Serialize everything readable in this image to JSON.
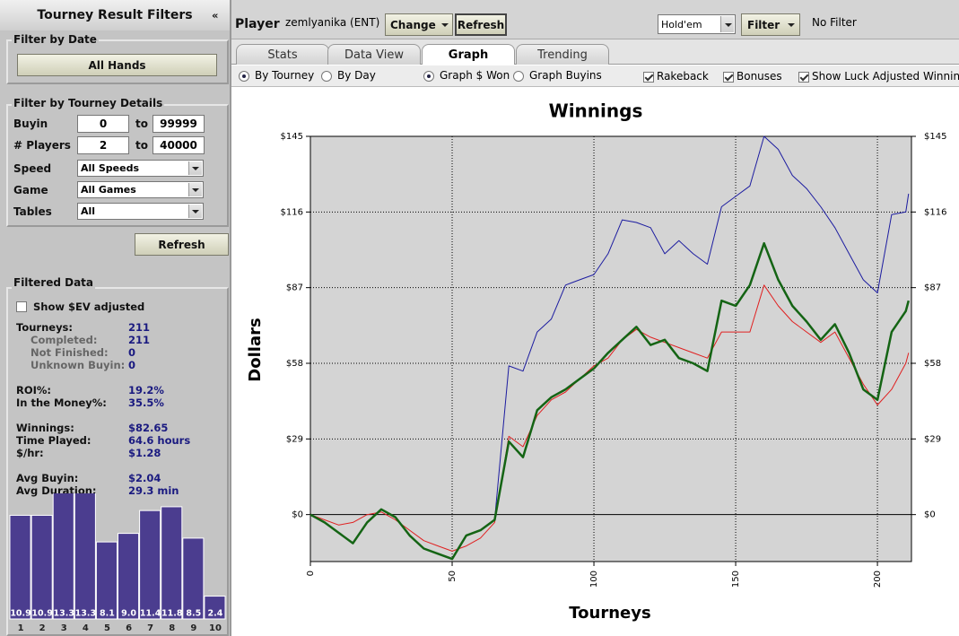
{
  "sidebar": {
    "title": "Tourney Result Filters",
    "collapse": "«",
    "date_filter": {
      "heading": "Filter by Date",
      "button": "All Hands"
    },
    "details_filter": {
      "heading": "Filter by Tourney Details",
      "ranges": [
        {
          "label": "Buyin",
          "from": "0",
          "to_label": "to",
          "to": "99999"
        },
        {
          "label": "# Players",
          "from": "2",
          "to_label": "to",
          "to": "40000"
        }
      ],
      "selects": [
        {
          "label": "Speed",
          "value": "All Speeds"
        },
        {
          "label": "Game",
          "value": "All Games"
        },
        {
          "label": "Tables",
          "value": "All"
        }
      ]
    },
    "refresh": "Refresh",
    "filtered": {
      "heading": "Filtered Data",
      "checkbox": {
        "label": "Show $EV adjusted",
        "checked": false
      },
      "groups": [
        [
          {
            "label": "Tourneys:",
            "value": "211",
            "details": [
              {
                "label": "Completed:",
                "value": "211"
              },
              {
                "label": "Not Finished:",
                "value": "0"
              },
              {
                "label": "Unknown Buyin:",
                "value": "0"
              }
            ]
          }
        ],
        [
          {
            "label": "ROI%:",
            "value": "19.2%"
          },
          {
            "label": "In the Money%:",
            "value": "35.5%"
          }
        ],
        [
          {
            "label": "Winnings:",
            "value": "$82.65"
          },
          {
            "label": "Time Played:",
            "value": "64.6 hours"
          },
          {
            "label": "$/hr:",
            "value": "$1.28"
          }
        ],
        [
          {
            "label": "Avg Buyin:",
            "value": "$2.04"
          },
          {
            "label": "Avg Duration:",
            "value": "29.3 min"
          }
        ]
      ]
    }
  },
  "toolbar": {
    "player_label": "Player",
    "player": "zemlyanika (ENT)",
    "buttons": [
      "Change",
      "Refresh"
    ],
    "game": "Hold'em",
    "filter": "Filter",
    "filter_status": "No Filter"
  },
  "tabs": [
    {
      "label": "Stats"
    },
    {
      "label": "Data View"
    },
    {
      "label": "Graph",
      "active": true
    },
    {
      "label": "Trending"
    }
  ],
  "options": {
    "radios": [
      {
        "label": "By Tourney",
        "checked": true
      },
      {
        "label": "By Day",
        "checked": false
      },
      {
        "label": "Graph $ Won",
        "checked": true
      },
      {
        "label": "Graph Buyins",
        "checked": false
      }
    ],
    "checkboxes": [
      {
        "label": "Rakeback",
        "checked": true
      },
      {
        "label": "Bonuses",
        "checked": true
      },
      {
        "label": "Show Luck Adjusted Winnings",
        "checked": true
      }
    ]
  },
  "chart_data": [
    {
      "type": "line",
      "title": "Winnings",
      "x_label": "Tourneys",
      "y_label": "Dollars",
      "x": [
        0,
        5,
        10,
        15,
        20,
        25,
        30,
        35,
        40,
        45,
        50,
        55,
        60,
        65,
        70,
        75,
        80,
        85,
        90,
        95,
        100,
        105,
        110,
        115,
        120,
        125,
        130,
        135,
        140,
        145,
        150,
        155,
        160,
        165,
        170,
        175,
        180,
        185,
        190,
        195,
        200,
        205,
        210,
        211
      ],
      "series": [
        {
          "color": "#1c1ca0",
          "width": 1,
          "values": [
            0,
            -3,
            -7,
            -11,
            -3,
            2,
            -1,
            -8,
            -13,
            -15,
            -17,
            -8,
            -6,
            -2,
            57,
            55,
            70,
            75,
            88,
            90,
            92,
            100,
            113,
            112,
            110,
            100,
            105,
            100,
            96,
            118,
            122,
            126,
            145,
            140,
            130,
            125,
            118,
            110,
            100,
            90,
            85,
            115,
            116,
            123
          ]
        },
        {
          "color": "#e02020",
          "width": 1,
          "values": [
            0,
            -2,
            -4,
            -3,
            0,
            1,
            -2,
            -6,
            -10,
            -12,
            -14,
            -12,
            -9,
            -3,
            30,
            26,
            38,
            44,
            47,
            52,
            57,
            60,
            67,
            71,
            68,
            66,
            64,
            62,
            60,
            70,
            70,
            70,
            88,
            80,
            74,
            70,
            66,
            70,
            60,
            50,
            42,
            48,
            58,
            62
          ]
        },
        {
          "color": "#146414",
          "width": 2.5,
          "values": [
            0,
            -3,
            -7,
            -11,
            -3,
            2,
            -1,
            -8,
            -13,
            -15,
            -17,
            -8,
            -6,
            -2,
            28,
            22,
            40,
            45,
            48,
            52,
            56,
            62,
            67,
            72,
            65,
            67,
            60,
            58,
            55,
            82,
            80,
            88,
            104,
            90,
            80,
            74,
            67,
            73,
            62,
            48,
            44,
            70,
            78,
            82
          ]
        }
      ],
      "xlim": [
        0,
        212
      ],
      "xticks": [
        0,
        50,
        100,
        150,
        200
      ],
      "ylim": [
        -18,
        145
      ],
      "yticks": [
        {
          "value": 0,
          "label": "$0"
        },
        {
          "value": 29,
          "label": "$29"
        },
        {
          "value": 58,
          "label": "$58"
        },
        {
          "value": 87,
          "label": "$87"
        },
        {
          "value": 116,
          "label": "$116"
        },
        {
          "value": 145,
          "label": "$145"
        }
      ],
      "grid": true,
      "plot_color": "#d4d4d4"
    },
    {
      "type": "bar",
      "categories": [
        "1",
        "2",
        "3",
        "4",
        "5",
        "6",
        "7",
        "8",
        "9",
        "10"
      ],
      "values": [
        10.9,
        10.9,
        13.3,
        13.3,
        8.1,
        9.0,
        11.4,
        11.8,
        8.5,
        2.4
      ],
      "value_labels": [
        "10.9",
        "10.9",
        "13.3",
        "13.3",
        "8.1",
        "9.0",
        "11.4",
        "11.8",
        "8.5",
        "2.4"
      ],
      "color": "#4b3d8f"
    }
  ]
}
